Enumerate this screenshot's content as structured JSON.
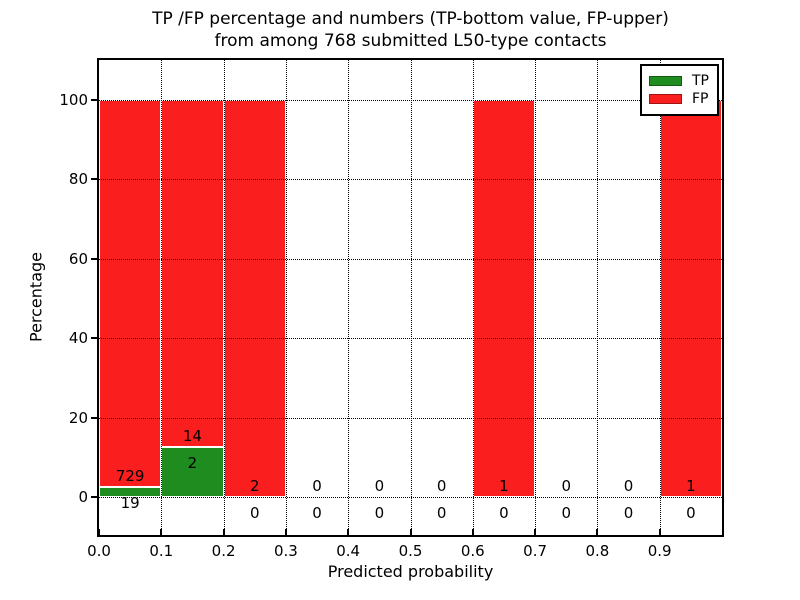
{
  "chart_data": {
    "type": "bar",
    "stacked": true,
    "title_line1": "TP /FP percentage and numbers (TP-bottom value, FP-upper)",
    "title_line2": "from among 768 submitted L50-type contacts",
    "title": "TP /FP percentage and numbers (TP-bottom value, FP-upper)\nfrom among 768 submitted L50-type contacts",
    "xlabel": "Predicted probability",
    "ylabel": "Percentage",
    "xlim": [
      0.0,
      1.0
    ],
    "ylim": [
      -9,
      110
    ],
    "x_ticks": [
      "0.0",
      "0.1",
      "0.2",
      "0.3",
      "0.4",
      "0.5",
      "0.6",
      "0.7",
      "0.8",
      "0.9"
    ],
    "y_ticks": [
      "0",
      "20",
      "40",
      "60",
      "80",
      "100"
    ],
    "grid": "dotted",
    "categories": [
      "0.0-0.1",
      "0.1-0.2",
      "0.2-0.3",
      "0.3-0.4",
      "0.4-0.5",
      "0.5-0.6",
      "0.6-0.7",
      "0.7-0.8",
      "0.8-0.9",
      "0.9-1.0"
    ],
    "series": [
      {
        "name": "TP",
        "counts": [
          19,
          2,
          0,
          0,
          0,
          0,
          0,
          0,
          0,
          0
        ],
        "pct": [
          2.54,
          12.5,
          0,
          0,
          0,
          0,
          0,
          0,
          0,
          0
        ]
      },
      {
        "name": "FP",
        "counts": [
          729,
          14,
          2,
          0,
          0,
          0,
          1,
          0,
          0,
          1
        ],
        "pct": [
          97.46,
          87.5,
          100,
          0,
          0,
          0,
          100,
          0,
          0,
          100
        ]
      }
    ],
    "bins": [
      {
        "x0": 0.0,
        "x1": 0.1,
        "tp": 19,
        "fp": 729,
        "tp_pct": 2.54,
        "fp_pct": 97.46
      },
      {
        "x0": 0.1,
        "x1": 0.2,
        "tp": 2,
        "fp": 14,
        "tp_pct": 12.5,
        "fp_pct": 87.5
      },
      {
        "x0": 0.2,
        "x1": 0.3,
        "tp": 0,
        "fp": 2,
        "tp_pct": 0,
        "fp_pct": 100
      },
      {
        "x0": 0.3,
        "x1": 0.4,
        "tp": 0,
        "fp": 0,
        "tp_pct": 0,
        "fp_pct": 0
      },
      {
        "x0": 0.4,
        "x1": 0.5,
        "tp": 0,
        "fp": 0,
        "tp_pct": 0,
        "fp_pct": 0
      },
      {
        "x0": 0.5,
        "x1": 0.6,
        "tp": 0,
        "fp": 0,
        "tp_pct": 0,
        "fp_pct": 0
      },
      {
        "x0": 0.6,
        "x1": 0.7,
        "tp": 0,
        "fp": 1,
        "tp_pct": 0,
        "fp_pct": 100
      },
      {
        "x0": 0.7,
        "x1": 0.8,
        "tp": 0,
        "fp": 0,
        "tp_pct": 0,
        "fp_pct": 0
      },
      {
        "x0": 0.8,
        "x1": 0.9,
        "tp": 0,
        "fp": 0,
        "tp_pct": 0,
        "fp_pct": 0
      },
      {
        "x0": 0.9,
        "x1": 1.0,
        "tp": 0,
        "fp": 1,
        "tp_pct": 0,
        "fp_pct": 100
      }
    ],
    "total_contacts": 768,
    "legend": {
      "position": "upper right",
      "entries": [
        {
          "label": "TP",
          "color": "#1e8c1e"
        },
        {
          "label": "FP",
          "color": "#fb1e1e"
        }
      ]
    }
  },
  "colors": {
    "tp": "#1e8c1e",
    "fp": "#fb1e1e",
    "grid": "#000000",
    "bar_edge": "#ffffff",
    "background": "#ffffff",
    "text": "#000000"
  }
}
